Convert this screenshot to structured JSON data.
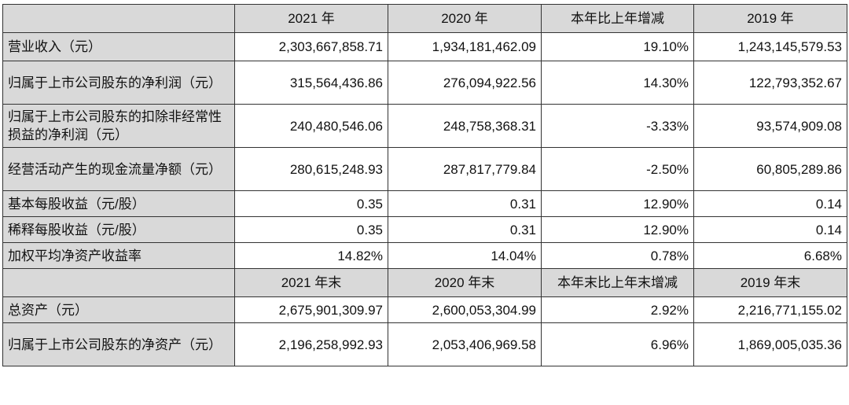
{
  "header1": [
    "2021 年",
    "2020 年",
    "本年比上年增减",
    "2019 年"
  ],
  "header2": [
    "2021 年末",
    "2020 年末",
    "本年末比上年末增减",
    "2019 年末"
  ],
  "rows_a": [
    {
      "label": "营业收入（元）",
      "values": [
        "2,303,667,858.71",
        "1,934,181,462.09",
        "19.10%",
        "1,243,145,579.53"
      ]
    },
    {
      "label": "归属于上市公司股东的净利润（元）",
      "values": [
        "315,564,436.86",
        "276,094,922.56",
        "14.30%",
        "122,793,352.67"
      ]
    },
    {
      "label": "归属于上市公司股东的扣除非经常性损益的净利润（元）",
      "values": [
        "240,480,546.06",
        "248,758,368.31",
        "-3.33%",
        "93,574,909.08"
      ]
    },
    {
      "label": "经营活动产生的现金流量净额（元）",
      "values": [
        "280,615,248.93",
        "287,817,779.84",
        "-2.50%",
        "60,805,289.86"
      ]
    },
    {
      "label": "基本每股收益（元/股）",
      "values": [
        "0.35",
        "0.31",
        "12.90%",
        "0.14"
      ]
    },
    {
      "label": "稀释每股收益（元/股）",
      "values": [
        "0.35",
        "0.31",
        "12.90%",
        "0.14"
      ]
    },
    {
      "label": "加权平均净资产收益率",
      "values": [
        "14.82%",
        "14.04%",
        "0.78%",
        "6.68%"
      ]
    }
  ],
  "rows_b": [
    {
      "label": "总资产（元）",
      "values": [
        "2,675,901,309.97",
        "2,600,053,304.99",
        "2.92%",
        "2,216,771,155.02"
      ]
    },
    {
      "label": "归属于上市公司股东的净资产（元）",
      "values": [
        "2,196,258,992.93",
        "2,053,406,969.58",
        "6.96%",
        "1,869,005,035.36"
      ]
    }
  ]
}
